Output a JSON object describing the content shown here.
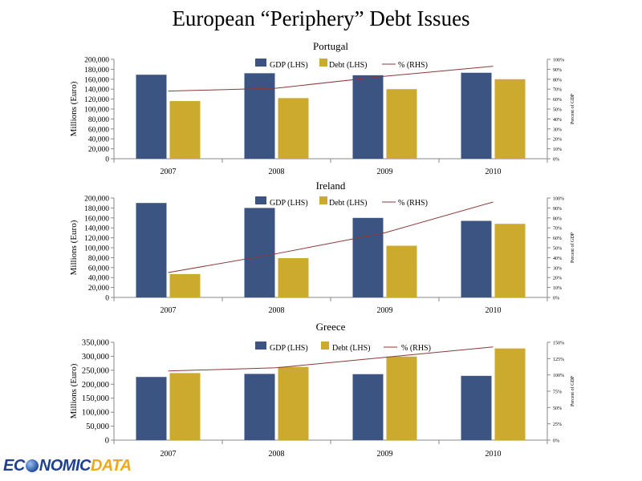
{
  "title": "European “Periphery” Debt Issues",
  "logo": {
    "part1": "EC",
    "part2": "NOMIC",
    "part3": "DATA"
  },
  "colors": {
    "gdp": "#3c5482",
    "debt": "#ccaa2e",
    "pct": "#8b3838",
    "axis": "#888888"
  },
  "chart_data": [
    {
      "type": "bar",
      "title": "Portugal",
      "categories": [
        "2007",
        "2008",
        "2009",
        "2010"
      ],
      "series": [
        {
          "name": "GDP (LHS)",
          "values": [
            169000,
            172000,
            168000,
            173000
          ]
        },
        {
          "name": "Debt (LHS)",
          "values": [
            116000,
            122000,
            140000,
            160000
          ]
        }
      ],
      "line_series": {
        "name": "% (RHS)",
        "values": [
          68,
          71,
          83,
          93
        ]
      },
      "ylabel": "Millions (Euro)",
      "ylabel_right": "Percent of GDP",
      "ylim": [
        0,
        200000
      ],
      "yticks": [
        "0",
        "20,000",
        "40,000",
        "60,000",
        "80,000",
        "100,000",
        "120,000",
        "140,000",
        "160,000",
        "180,000",
        "200,000"
      ],
      "ylim_right": [
        0,
        100
      ],
      "yticks_right": [
        "0%",
        "10%",
        "20%",
        "30%",
        "40%",
        "50%",
        "60%",
        "70%",
        "80%",
        "90%",
        "100%"
      ],
      "legend": "top-center"
    },
    {
      "type": "bar",
      "title": "Ireland",
      "categories": [
        "2007",
        "2008",
        "2009",
        "2010"
      ],
      "series": [
        {
          "name": "GDP (LHS)",
          "values": [
            190000,
            180000,
            160000,
            154000
          ]
        },
        {
          "name": "Debt (LHS)",
          "values": [
            47000,
            79000,
            104000,
            148000
          ]
        }
      ],
      "line_series": {
        "name": "% (RHS)",
        "values": [
          25,
          44,
          65,
          96
        ]
      },
      "ylabel": "Millions (Euro)",
      "ylabel_right": "Percent of GDP",
      "ylim": [
        0,
        200000
      ],
      "yticks": [
        "0",
        "20,000",
        "40,000",
        "60,000",
        "80,000",
        "100,000",
        "120,000",
        "140,000",
        "160,000",
        "180,000",
        "200,000"
      ],
      "ylim_right": [
        0,
        100
      ],
      "yticks_right": [
        "0%",
        "10%",
        "20%",
        "30%",
        "40%",
        "50%",
        "60%",
        "70%",
        "80%",
        "90%",
        "100%"
      ],
      "legend": "top-center"
    },
    {
      "type": "bar",
      "title": "Greece",
      "categories": [
        "2007",
        "2008",
        "2009",
        "2010"
      ],
      "series": [
        {
          "name": "GDP (LHS)",
          "values": [
            226000,
            237000,
            236000,
            230000
          ]
        },
        {
          "name": "Debt (LHS)",
          "values": [
            240000,
            262000,
            299000,
            328000
          ]
        }
      ],
      "line_series": {
        "name": "% (RHS)",
        "values": [
          106,
          111,
          127,
          143
        ]
      },
      "ylabel": "Millions (Euro)",
      "ylabel_right": "Percent of GDP",
      "ylim": [
        0,
        350000
      ],
      "yticks": [
        "0",
        "50,000",
        "100,000",
        "150,000",
        "200,000",
        "250,000",
        "300,000",
        "350,000"
      ],
      "ylim_right": [
        0,
        150
      ],
      "yticks_right": [
        "0%",
        "25%",
        "50%",
        "75%",
        "100%",
        "125%",
        "150%"
      ],
      "legend": "top-center"
    }
  ]
}
